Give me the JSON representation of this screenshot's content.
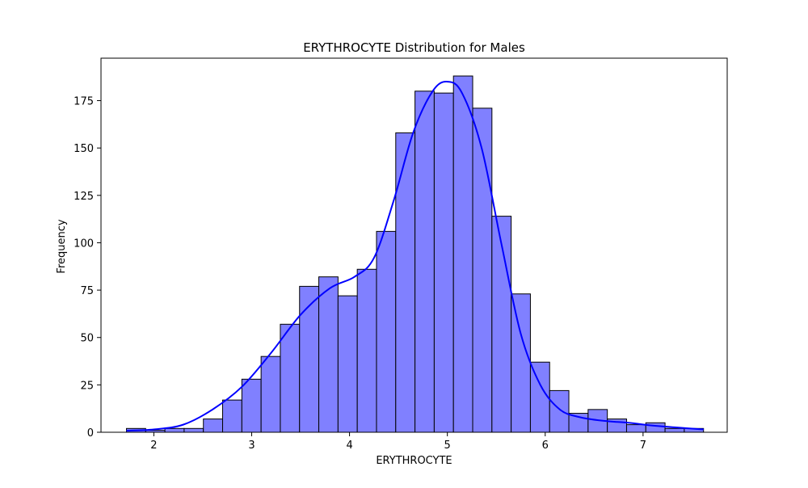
{
  "chart_data": {
    "type": "bar",
    "title": "ERYTHROCYTE Distribution for Males",
    "xlabel": "ERYTHROCYTE",
    "ylabel": "Frequency",
    "xlim": [
      1.46,
      7.86
    ],
    "ylim": [
      0,
      197.4
    ],
    "x_ticks": [
      2,
      3,
      4,
      5,
      6,
      7
    ],
    "y_ticks": [
      0,
      25,
      50,
      75,
      100,
      125,
      150,
      175
    ],
    "bin_start": 1.72,
    "bin_width": 0.1966,
    "values": [
      2,
      1,
      2,
      2,
      7,
      17,
      28,
      40,
      57,
      77,
      82,
      72,
      86,
      106,
      158,
      180,
      179,
      188,
      171,
      114,
      73,
      37,
      22,
      10,
      12,
      7,
      4,
      5,
      2,
      2
    ],
    "kde": {
      "x": [
        1.72,
        2.0,
        2.3,
        2.6,
        2.9,
        3.2,
        3.5,
        3.8,
        4.05,
        4.25,
        4.45,
        4.65,
        4.85,
        5.0,
        5.15,
        5.35,
        5.55,
        5.75,
        5.95,
        6.15,
        6.35,
        6.6,
        6.85,
        7.1,
        7.35,
        7.62
      ],
      "y": [
        0.8,
        1.5,
        4,
        12,
        24,
        42,
        62,
        76,
        82,
        92,
        122,
        158,
        180,
        185,
        179,
        150,
        100,
        52,
        25,
        12,
        8,
        6,
        5,
        3.5,
        2.5,
        1.5
      ]
    },
    "grid": false,
    "legend": "none",
    "colors": {
      "bar_fill": "#8080ff",
      "bar_edge": "#000000",
      "kde_line": "#0000ff"
    }
  }
}
